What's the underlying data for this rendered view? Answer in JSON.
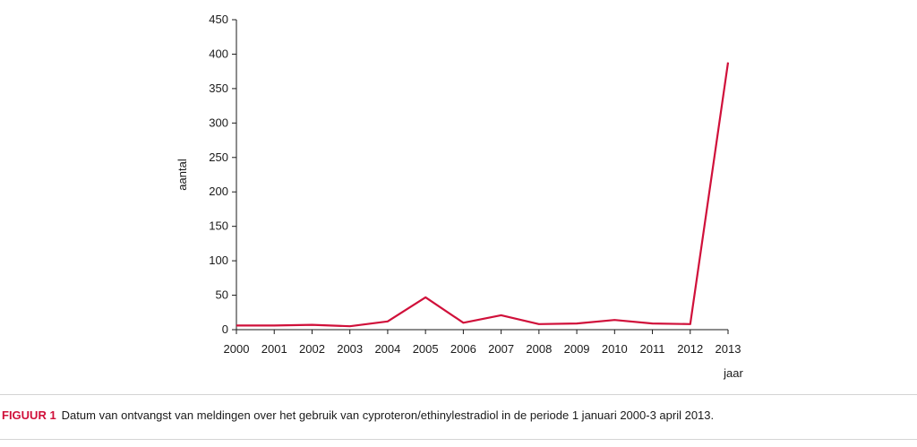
{
  "chart_data": {
    "type": "line",
    "title": "",
    "xlabel": "jaar",
    "ylabel": "aantal",
    "x": [
      2000,
      2001,
      2002,
      2003,
      2004,
      2005,
      2006,
      2007,
      2008,
      2009,
      2010,
      2011,
      2012,
      2013
    ],
    "series": [
      {
        "values": [
          6,
          6,
          7,
          5,
          12,
          47,
          10,
          21,
          8,
          9,
          14,
          9,
          8,
          388
        ]
      }
    ],
    "ylim": [
      0,
      450
    ],
    "yticks": [
      0,
      50,
      100,
      150,
      200,
      250,
      300,
      350,
      400,
      450
    ],
    "grid": false,
    "colors": {
      "line": "#d0103a",
      "axis": "#1a1a1a"
    }
  },
  "caption": {
    "label": "FIGUUR 1",
    "text": "Datum van ontvangst van meldingen over het gebruik van cyproteron/ethinylestradiol in de periode 1 januari 2000-3 april 2013."
  }
}
